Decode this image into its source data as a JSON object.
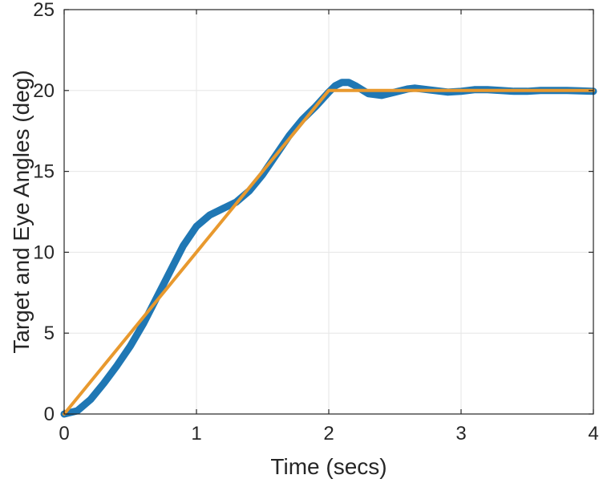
{
  "chart_data": {
    "type": "line",
    "title": "",
    "xlabel": "Time (secs)",
    "ylabel": "Target and Eye Angles (deg)",
    "xlim": [
      0,
      4
    ],
    "ylim": [
      0,
      25
    ],
    "xticks": [
      0,
      1,
      2,
      3,
      4
    ],
    "yticks": [
      0,
      5,
      10,
      15,
      20,
      25
    ],
    "grid": true,
    "legend": "none",
    "series": [
      {
        "color": "#1f77b4",
        "points": [
          [
            0,
            0
          ],
          [
            0.1,
            0.2
          ],
          [
            0.2,
            0.9
          ],
          [
            0.3,
            1.9
          ],
          [
            0.4,
            3.0
          ],
          [
            0.5,
            4.2
          ],
          [
            0.6,
            5.6
          ],
          [
            0.7,
            7.2
          ],
          [
            0.8,
            8.8
          ],
          [
            0.9,
            10.4
          ],
          [
            1.0,
            11.6
          ],
          [
            1.1,
            12.3
          ],
          [
            1.2,
            12.7
          ],
          [
            1.3,
            13.1
          ],
          [
            1.4,
            13.8
          ],
          [
            1.5,
            14.8
          ],
          [
            1.6,
            16.0
          ],
          [
            1.7,
            17.2
          ],
          [
            1.8,
            18.2
          ],
          [
            1.9,
            19.0
          ],
          [
            2.0,
            19.9
          ],
          [
            2.05,
            20.3
          ],
          [
            2.1,
            20.5
          ],
          [
            2.15,
            20.5
          ],
          [
            2.2,
            20.3
          ],
          [
            2.3,
            19.8
          ],
          [
            2.4,
            19.7
          ],
          [
            2.5,
            19.9
          ],
          [
            2.6,
            20.1
          ],
          [
            2.65,
            20.15
          ],
          [
            2.7,
            20.1
          ],
          [
            2.8,
            20.0
          ],
          [
            2.9,
            19.9
          ],
          [
            3.0,
            19.95
          ],
          [
            3.1,
            20.05
          ],
          [
            3.2,
            20.05
          ],
          [
            3.3,
            20.0
          ],
          [
            3.4,
            19.95
          ],
          [
            3.5,
            19.95
          ],
          [
            3.6,
            20.0
          ],
          [
            3.7,
            20.0
          ],
          [
            3.8,
            20.0
          ],
          [
            3.9,
            19.98
          ],
          [
            4.0,
            19.95
          ]
        ]
      },
      {
        "color": "#e8992e",
        "points": [
          [
            0,
            0
          ],
          [
            2.0,
            20.0
          ],
          [
            4.0,
            20.0
          ]
        ]
      }
    ]
  }
}
